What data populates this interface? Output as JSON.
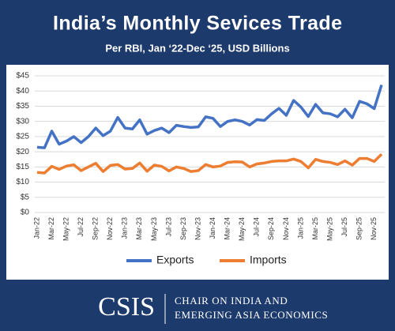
{
  "chart_data": {
    "type": "line",
    "title": "India’s Monthly Sevices Trade",
    "subtitle": "Per RBI, Jan ‘22-Dec ‘25, USD Billions",
    "categories": [
      "Jan-22",
      null,
      "Mar-22",
      null,
      "May-22",
      null,
      "Jul-22",
      null,
      "Sep-22",
      null,
      "Nov-22",
      null,
      "Jan-23",
      null,
      "Mar-23",
      null,
      "May-23",
      null,
      "Jul-23",
      null,
      "Sep-23",
      null,
      "Nov-23",
      null,
      "Jan-24",
      null,
      "Mar-24",
      null,
      "May-24",
      null,
      "Jul-24",
      null,
      "Sep-24",
      null,
      "Nov-24",
      null,
      "Jan-25",
      null,
      "Mar-25",
      null,
      "May-25",
      null,
      "Jul-25",
      null,
      "Sep-25",
      null,
      "Nov-25",
      null
    ],
    "series": [
      {
        "name": "Exports",
        "color": "#4472c4",
        "values": [
          21.5,
          21.3,
          26.8,
          22.5,
          23.5,
          25,
          23,
          25,
          27.8,
          25.3,
          26.8,
          31.3,
          27.8,
          27.5,
          30.5,
          25.8,
          27,
          27.8,
          26.3,
          28.7,
          28.3,
          28,
          28.2,
          31.5,
          31,
          28.3,
          30,
          30.5,
          30,
          28.8,
          30.6,
          30.3,
          32.5,
          34.3,
          32,
          36.9,
          34.7,
          31.6,
          35.6,
          32.8,
          32.5,
          31.5,
          34,
          31.2,
          36.6,
          35.8,
          34.2,
          42
        ]
      },
      {
        "name": "Imports",
        "color": "#ed7d31",
        "values": [
          13.2,
          13,
          15.2,
          14.2,
          15.3,
          15.7,
          13.8,
          15,
          16.2,
          13.5,
          15.5,
          15.8,
          14.3,
          14.5,
          16.3,
          13.6,
          15.6,
          15.2,
          13.7,
          15,
          14.5,
          13.5,
          13.8,
          15.8,
          15,
          15.3,
          16.5,
          16.7,
          16.6,
          15,
          16,
          16.3,
          16.8,
          17,
          17,
          17.6,
          16.8,
          14.7,
          17.5,
          16.8,
          16.5,
          15.8,
          17,
          15.6,
          17.8,
          17.8,
          16.8,
          19.2
        ]
      }
    ],
    "ylim": [
      0,
      45
    ],
    "yticks": [
      {
        "value": 0,
        "label": "$0"
      },
      {
        "value": 5,
        "label": "$5"
      },
      {
        "value": 10,
        "label": "$10"
      },
      {
        "value": 15,
        "label": "$15"
      },
      {
        "value": 20,
        "label": "$20"
      },
      {
        "value": 25,
        "label": "$25"
      },
      {
        "value": 30,
        "label": "$30"
      },
      {
        "value": 35,
        "label": "$35"
      },
      {
        "value": 40,
        "label": "$40"
      },
      {
        "value": 45,
        "label": "$45"
      }
    ],
    "grid": true
  },
  "footer": {
    "logo": "CSIS",
    "lines": [
      "CHAIR ON INDIA AND",
      "EMERGING ASIA ECONOMICS"
    ]
  }
}
